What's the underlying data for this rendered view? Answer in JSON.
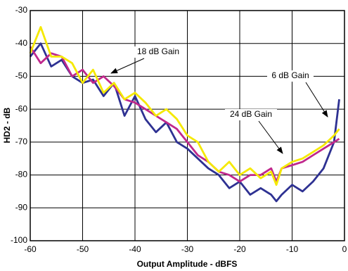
{
  "chart_data": {
    "type": "line",
    "x_label": "Output Amplitude - dBFS",
    "y_label": "HD2 - dB",
    "x": [
      -60,
      -58,
      -56,
      -54,
      -52,
      -50,
      -48,
      -46,
      -44,
      -42,
      -40,
      -38,
      -36,
      -34,
      -32,
      -30,
      -28,
      -26,
      -24,
      -22,
      -20,
      -18,
      -16,
      -14,
      -13,
      -12,
      -10,
      -8,
      -6,
      -4,
      -2,
      -1
    ],
    "series": [
      {
        "name": "6 dB Gain",
        "color": "#2e3192",
        "values": [
          -44,
          -40,
          -47,
          -45,
          -50,
          -52,
          -51,
          -56,
          -52,
          -62,
          -56,
          -63,
          -67,
          -64,
          -70,
          -72,
          -75,
          -78,
          -80,
          -84,
          -82,
          -86,
          -84,
          -86,
          -88,
          -86,
          -83,
          -85,
          -82,
          -78,
          -70,
          -57
        ]
      },
      {
        "name": "18 dB Gain",
        "color": "#c0288c",
        "values": [
          -41,
          -46,
          -43,
          -44,
          -50,
          -48,
          -52,
          -50,
          -53,
          -57,
          -58,
          -60,
          -62,
          -64,
          -66,
          -70,
          -74,
          -76,
          -79,
          -80,
          -82,
          -80,
          -80,
          -78,
          -82,
          -78,
          -77,
          -76,
          -74,
          -72,
          -70,
          -69
        ]
      },
      {
        "name": "24 dB Gain",
        "color": "#f5e900",
        "values": [
          -43,
          -35,
          -44,
          -44,
          -46,
          -52,
          -48,
          -55,
          -52,
          -57,
          -55,
          -58,
          -62,
          -60,
          -63,
          -68,
          -70,
          -76,
          -79,
          -76,
          -80,
          -78,
          -81,
          -79,
          -83,
          -78,
          -76,
          -75,
          -73,
          -71,
          -68,
          -66
        ]
      }
    ],
    "xlim": [
      -60,
      0
    ],
    "xticks": [
      -60,
      -50,
      -40,
      -30,
      -20,
      -10,
      0
    ],
    "ylim": [
      -100,
      -30
    ],
    "yticks": [
      -100,
      -90,
      -80,
      -70,
      -60,
      -50,
      -40,
      -30
    ],
    "grid": true
  }
}
